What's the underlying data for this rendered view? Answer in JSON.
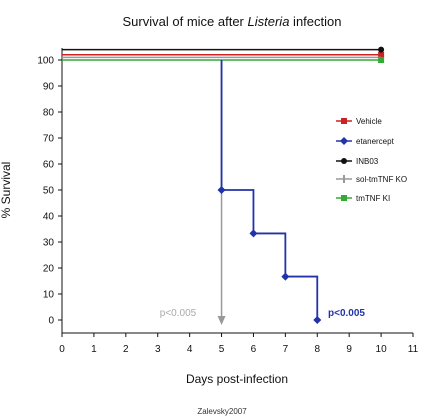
{
  "chart_data": {
    "type": "line",
    "title_prefix": "Survival of mice after ",
    "title_italic": "Listeria",
    "title_suffix": " infection",
    "xlabel": "Days post-infection",
    "ylabel": "% Survival",
    "xlim": [
      0,
      11
    ],
    "ylim": [
      0,
      105
    ],
    "x_ticks": [
      0,
      1,
      2,
      3,
      4,
      5,
      6,
      7,
      8,
      9,
      10,
      11
    ],
    "y_ticks": [
      0,
      10,
      20,
      30,
      40,
      50,
      60,
      70,
      80,
      90,
      100
    ],
    "grid": false,
    "legend_position": "right",
    "series": [
      {
        "name": "Vehicle",
        "color": "#cc2222",
        "marker": "square",
        "x": [
          0,
          10
        ],
        "y": [
          102,
          102
        ]
      },
      {
        "name": "etanercept",
        "color": "#2233aa",
        "marker": "diamond",
        "x": [
          5,
          6,
          7,
          8
        ],
        "y": [
          50,
          33.3,
          16.7,
          0
        ]
      },
      {
        "name": "INB03",
        "color": "#111111",
        "marker": "circle",
        "x": [
          0,
          10
        ],
        "y": [
          104,
          104
        ]
      },
      {
        "name": "sol-tmTNF KO",
        "color": "#999999",
        "marker": "bar",
        "x": [
          0,
          10
        ],
        "y": [
          101,
          101
        ]
      },
      {
        "name": "tmTNF KI",
        "color": "#33aa33",
        "marker": "square",
        "x": [
          0,
          10
        ],
        "y": [
          100,
          100
        ]
      }
    ],
    "annotations": [
      {
        "text": "p<0.005",
        "color": "#aaaaaa"
      },
      {
        "text": "p<0.005",
        "color": "#2233aa"
      }
    ],
    "credit": "Zalevsky2007"
  }
}
